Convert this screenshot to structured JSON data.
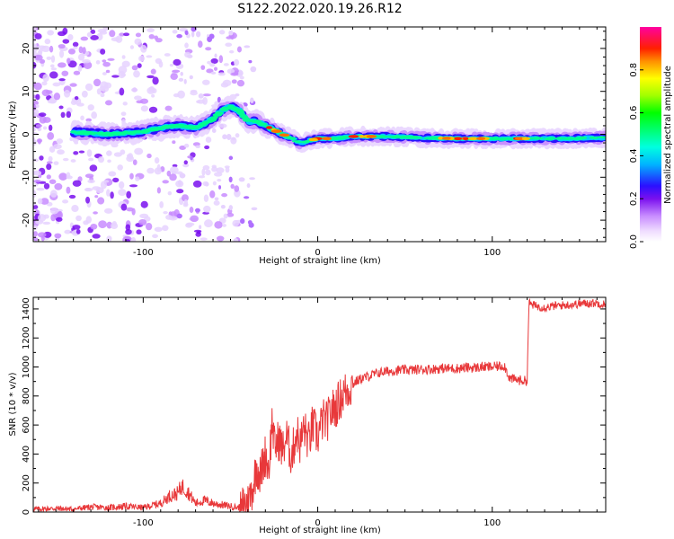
{
  "figure": {
    "title": "S122.2022.020.19.26.R12"
  },
  "chart_data": [
    {
      "type": "heatmap",
      "title": "S122.2022.020.19.26.R12",
      "xlabel": "Height of straight line (km)",
      "ylabel": "Frequency (Hz)",
      "xlim": [
        -163,
        165
      ],
      "ylim": [
        -25,
        25
      ],
      "x_ticks": [
        -100,
        0,
        100
      ],
      "x_tick_labels": [
        "-100",
        "0",
        "100"
      ],
      "y_ticks": [
        -20,
        -10,
        0,
        10,
        20
      ],
      "y_tick_labels": [
        "-20",
        "-10",
        "0",
        "10",
        "20"
      ],
      "colorbar": {
        "label": "Normalized spectral amplitude",
        "range": [
          0,
          1
        ],
        "ticks": [
          0.0,
          0.2,
          0.4,
          0.6,
          0.8
        ],
        "tick_labels": [
          "0.0",
          "0.2",
          "0.4",
          "0.6",
          "0.8"
        ],
        "colormap": "rainbow (white-lavender-purple-blue-cyan-green-yellow-orange-red-magenta)"
      },
      "ridge": {
        "x": [
          -140,
          -130,
          -120,
          -110,
          -100,
          -90,
          -80,
          -70,
          -60,
          -55,
          -50,
          -45,
          -40,
          -35,
          -30,
          -25,
          -20,
          -15,
          -10,
          -5,
          0,
          10,
          20,
          40,
          60,
          80,
          100,
          120,
          140,
          160,
          165
        ],
        "y": [
          0.5,
          0.3,
          0,
          0.3,
          0.6,
          1.5,
          2,
          1.5,
          3.5,
          5.5,
          6.5,
          5.5,
          3,
          3,
          2,
          1,
          0,
          -1,
          -2,
          -1.5,
          -1,
          -1,
          -0.5,
          -0.5,
          -0.8,
          -1,
          -1,
          -1,
          -1,
          -0.8,
          -0.8
        ]
      }
    },
    {
      "type": "line",
      "xlabel": "Height of straight line (km)",
      "ylabel": "SNR (10 * v/v)",
      "xlim": [
        -163,
        165
      ],
      "ylim": [
        0,
        1480
      ],
      "x_ticks": [
        -100,
        0,
        100
      ],
      "x_tick_labels": [
        "-100",
        "0",
        "100"
      ],
      "y_ticks": [
        0,
        200,
        400,
        600,
        800,
        1000,
        1200,
        1400
      ],
      "y_tick_labels": [
        "0",
        "200",
        "400",
        "600",
        "800",
        "1000",
        "1200",
        "1400"
      ],
      "series": [
        {
          "color": "#e8383a",
          "x": [
            -163,
            -150,
            -140,
            -130,
            -120,
            -110,
            -100,
            -95,
            -90,
            -85,
            -80,
            -78,
            -75,
            -70,
            -65,
            -60,
            -55,
            -50,
            -45,
            -40,
            -37,
            -35,
            -33,
            -30,
            -28,
            -26,
            -25,
            -22,
            -20,
            -18,
            -15,
            -12,
            -10,
            -8,
            -5,
            -3,
            0,
            3,
            5,
            8,
            10,
            13,
            15,
            18,
            20,
            22,
            25,
            30,
            35,
            40,
            45,
            50,
            55,
            60,
            65,
            70,
            75,
            80,
            85,
            90,
            95,
            100,
            105,
            107,
            110,
            115,
            118,
            120,
            121,
            125,
            130,
            135,
            140,
            145,
            150,
            155,
            160,
            165
          ],
          "y": [
            20,
            25,
            20,
            35,
            30,
            40,
            30,
            45,
            60,
            110,
            130,
            180,
            150,
            60,
            80,
            60,
            50,
            40,
            30,
            60,
            180,
            320,
            250,
            400,
            300,
            650,
            450,
            500,
            420,
            520,
            380,
            560,
            460,
            580,
            480,
            600,
            520,
            640,
            620,
            700,
            720,
            780,
            820,
            850,
            880,
            900,
            920,
            940,
            960,
            970,
            975,
            980,
            980,
            985,
            985,
            990,
            990,
            990,
            995,
            995,
            1000,
            1000,
            1005,
            1010,
            920,
            910,
            905,
            905,
            1440,
            1420,
            1410,
            1420,
            1425,
            1430,
            1435,
            1440,
            1440,
            1430
          ]
        }
      ]
    }
  ]
}
